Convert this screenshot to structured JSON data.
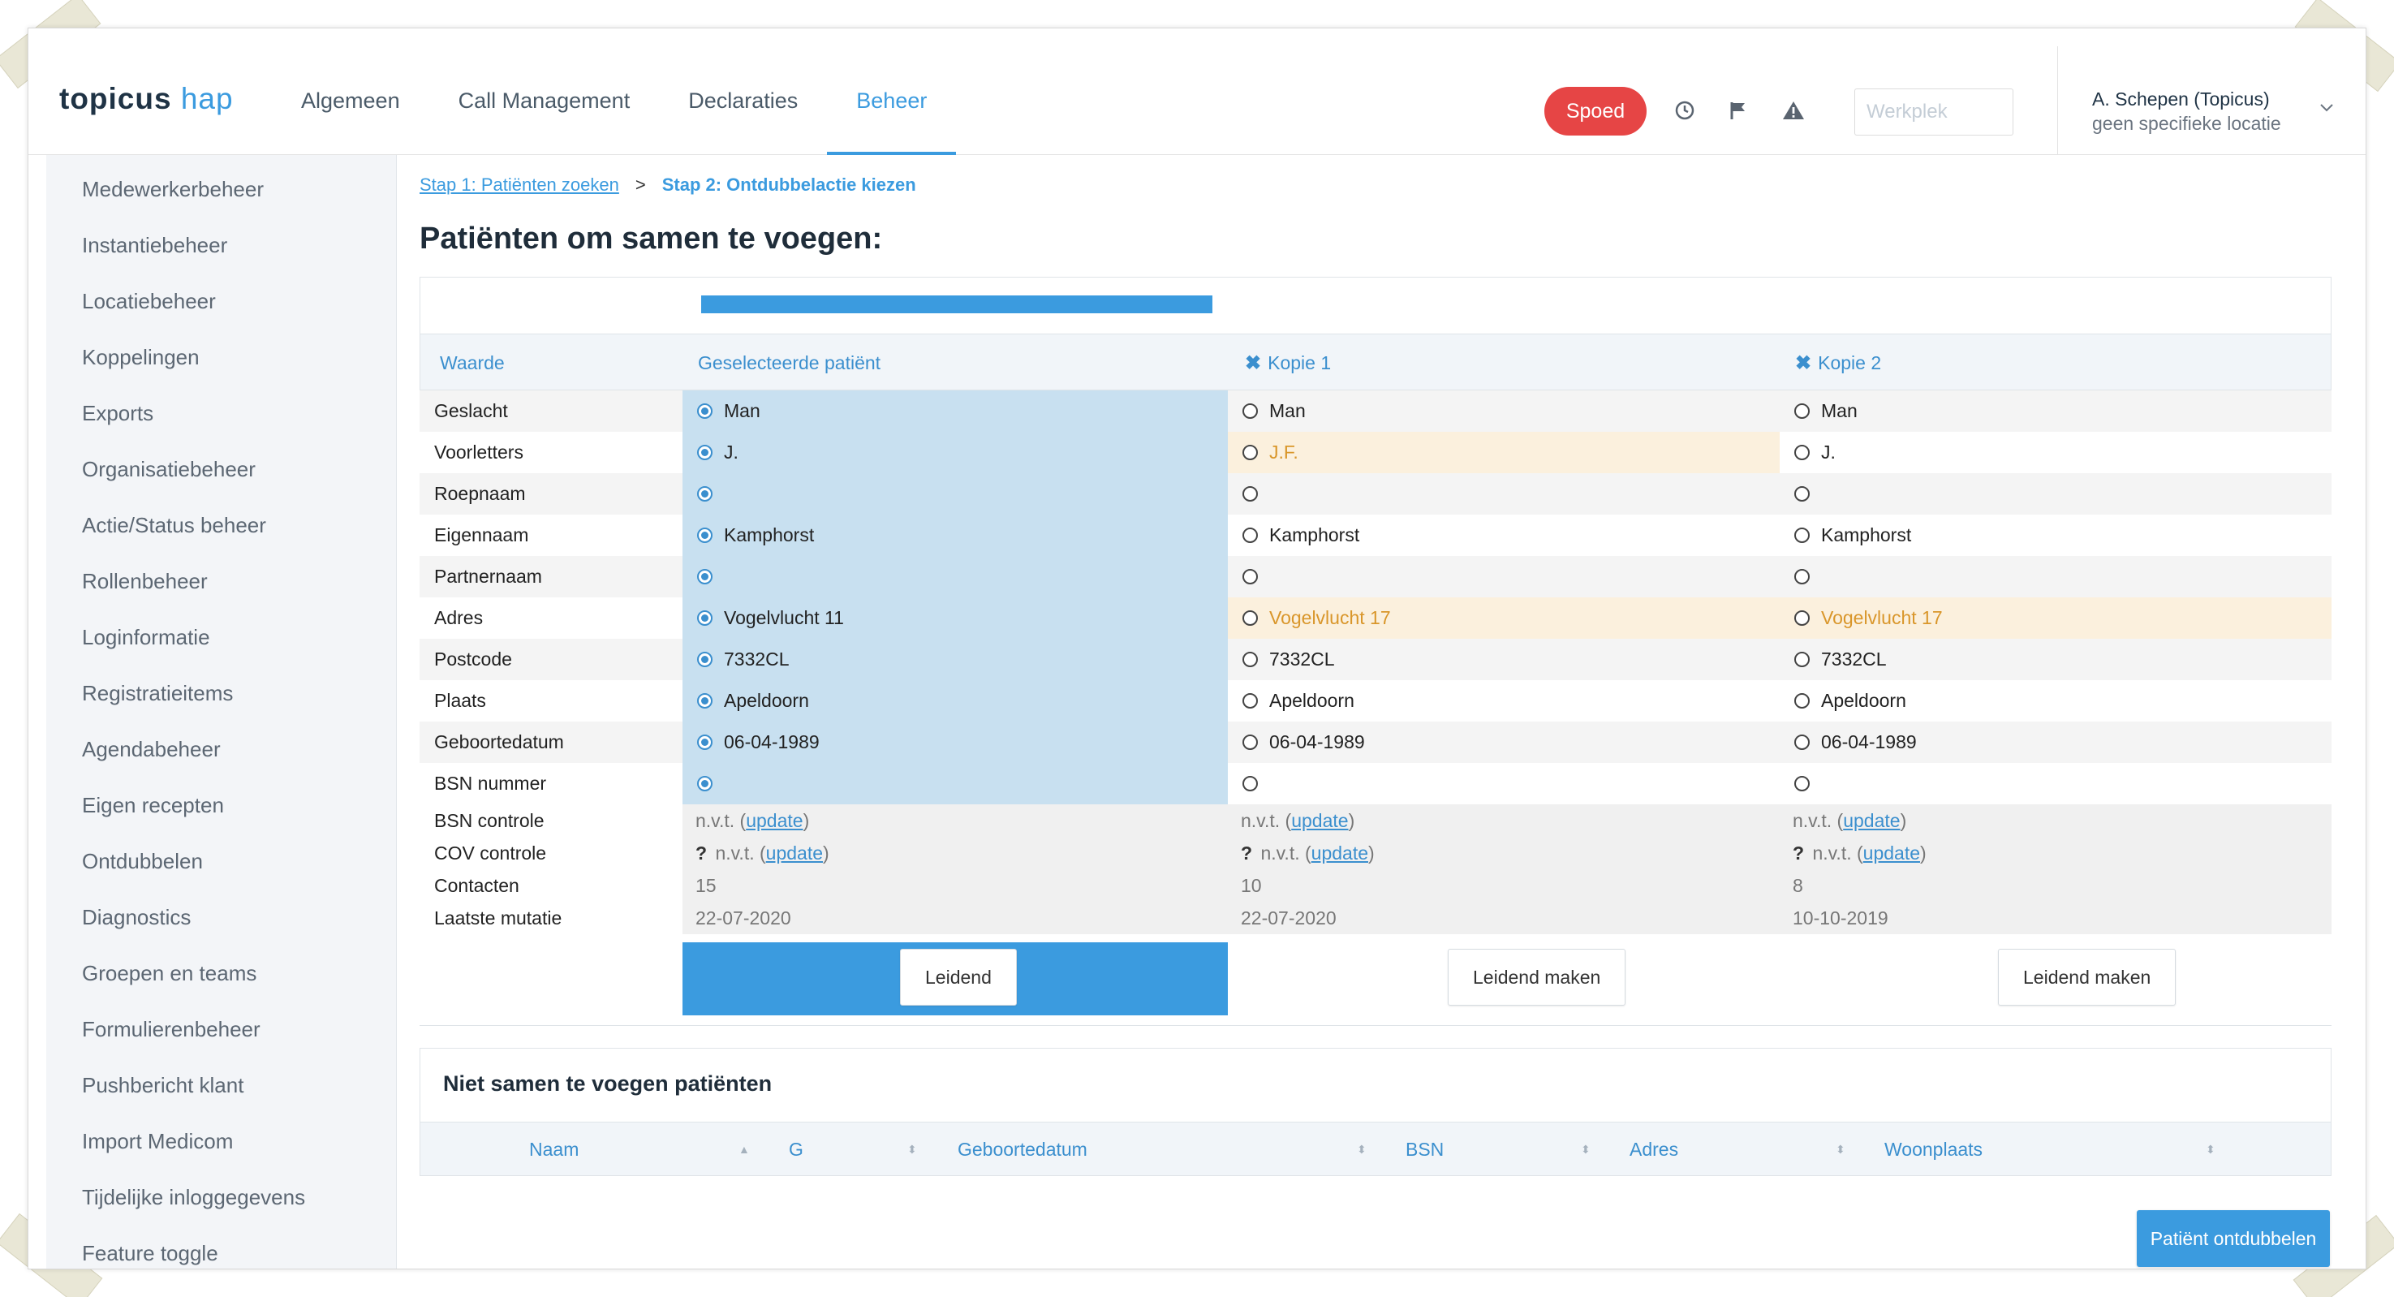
{
  "app": {
    "logo_main": "topicus",
    "logo_sub": "hap"
  },
  "nav": [
    "Algemeen",
    "Call Management",
    "Declaraties",
    "Beheer"
  ],
  "header": {
    "spoed_label": "Spoed",
    "werkplek_placeholder": "Werkplek",
    "user_name": "A. Schepen (Topicus)",
    "user_location": "geen specifieke locatie",
    "icons": [
      "clock-icon",
      "flag-icon",
      "warning-icon",
      "chevron-down-icon"
    ]
  },
  "sidebar": [
    "Medewerkerbeheer",
    "Instantiebeheer",
    "Locatiebeheer",
    "Koppelingen",
    "Exports",
    "Organisatiebeheer",
    "Actie/Status beheer",
    "Rollenbeheer",
    "Loginformatie",
    "Registratieitems",
    "Agendabeheer",
    "Eigen recepten",
    "Ontdubbelen",
    "Diagnostics",
    "Groepen en teams",
    "Formulierenbeheer",
    "Pushbericht klant",
    "Import Medicom",
    "Tijdelijke inloggegevens",
    "Feature toggle"
  ],
  "breadcrumb": {
    "step1": "Stap 1: Patiënten zoeken",
    "separator": ">",
    "step2": "Stap 2: Ontdubbelactie kiezen"
  },
  "page_title": "Patiënten om samen te voegen:",
  "compare": {
    "headers": {
      "waarde": "Waarde",
      "selected": "Geselecteerde patiënt",
      "copy1": "Kopie 1",
      "copy2": "Kopie 2"
    },
    "colors": {
      "accent": "#3b9bdf",
      "selected_bg": "#c8e0f0",
      "warning_bg": "#fbf0dd",
      "warning_text": "#d9962a"
    },
    "rows": [
      {
        "label": "Geslacht",
        "values": [
          "Man",
          "Man",
          "Man"
        ],
        "diff": [
          false,
          false,
          false
        ]
      },
      {
        "label": "Voorletters",
        "values": [
          "J.",
          "J.F.",
          "J."
        ],
        "diff": [
          false,
          true,
          false
        ]
      },
      {
        "label": "Roepnaam",
        "values": [
          "",
          "",
          ""
        ],
        "diff": [
          false,
          false,
          false
        ]
      },
      {
        "label": "Eigennaam",
        "values": [
          "Kamphorst",
          "Kamphorst",
          "Kamphorst"
        ],
        "diff": [
          false,
          false,
          false
        ]
      },
      {
        "label": "Partnernaam",
        "values": [
          "",
          "",
          ""
        ],
        "diff": [
          false,
          false,
          false
        ]
      },
      {
        "label": "Adres",
        "values": [
          "Vogelvlucht 11",
          "Vogelvlucht 17",
          "Vogelvlucht 17"
        ],
        "diff": [
          false,
          true,
          true
        ]
      },
      {
        "label": "Postcode",
        "values": [
          "7332CL",
          "7332CL",
          "7332CL"
        ],
        "diff": [
          false,
          false,
          false
        ]
      },
      {
        "label": "Plaats",
        "values": [
          "Apeldoorn",
          "Apeldoorn",
          "Apeldoorn"
        ],
        "diff": [
          false,
          false,
          false
        ]
      },
      {
        "label": "Geboortedatum",
        "values": [
          "06-04-1989",
          "06-04-1989",
          "06-04-1989"
        ],
        "diff": [
          false,
          false,
          false
        ]
      },
      {
        "label": "BSN nummer",
        "values": [
          "",
          "",
          ""
        ],
        "diff": [
          false,
          false,
          false
        ]
      }
    ],
    "info_rows": [
      {
        "label": "BSN controle",
        "prefix": [
          "",
          "",
          ""
        ],
        "values": [
          "n.v.t. (",
          "n.v.t. (",
          "n.v.t. ("
        ],
        "link": "update",
        "suffix": ")"
      },
      {
        "label": "COV controle",
        "prefix": [
          "?",
          "?",
          "?"
        ],
        "values": [
          " n.v.t. (",
          " n.v.t. (",
          " n.v.t. ("
        ],
        "link": "update",
        "suffix": ")"
      },
      {
        "label": "Contacten",
        "values": [
          "15",
          "10",
          "8"
        ]
      },
      {
        "label": "Laatste mutatie",
        "values": [
          "22-07-2020",
          "22-07-2020",
          "10-10-2019"
        ]
      }
    ],
    "buttons": [
      "Leidend",
      "Leidend maken",
      "Leidend maken"
    ]
  },
  "not_merge": {
    "title": "Niet samen te voegen patiënten",
    "columns": [
      "Naam",
      "G",
      "Geboortedatum",
      "BSN",
      "Adres",
      "Woonplaats"
    ]
  },
  "submit_label": "Patiënt ontdubbelen"
}
